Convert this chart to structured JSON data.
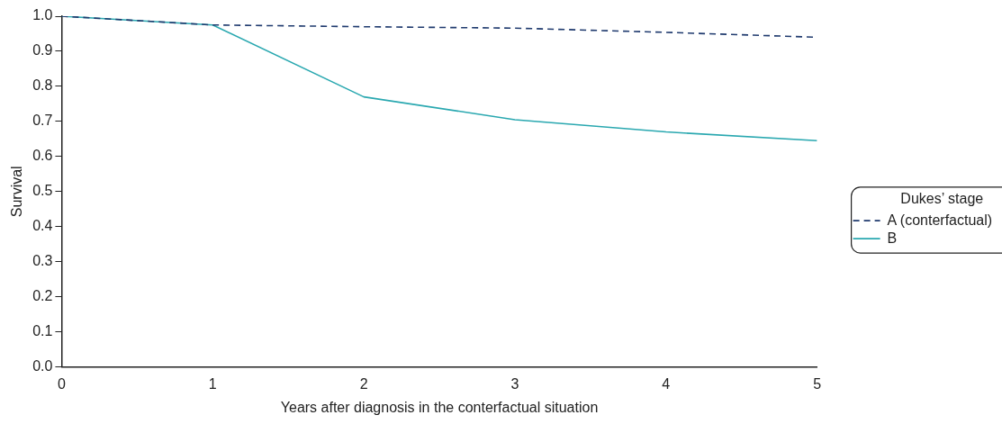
{
  "chart_data": {
    "type": "line",
    "xlabel": "Years after diagnosis in the conterfactual situation",
    "ylabel": "Survival",
    "legend_title": "Dukes’ stage",
    "x": [
      0,
      1,
      2,
      3,
      4,
      5
    ],
    "series": [
      {
        "name": "A (conterfactual)",
        "color": "#1f3a6e",
        "line_style": "dashed",
        "values": [
          1.0,
          0.975,
          0.97,
          0.966,
          0.954,
          0.94
        ]
      },
      {
        "name": "B",
        "color": "#2aa8b0",
        "line_style": "solid",
        "values": [
          1.0,
          0.975,
          0.77,
          0.705,
          0.67,
          0.645
        ]
      }
    ],
    "xlim": [
      0,
      5
    ],
    "xticks": [
      0,
      1,
      2,
      3,
      4,
      5
    ],
    "ylim": [
      0,
      1
    ],
    "yticks": [
      {
        "value": 0,
        "label": "0.0"
      },
      0.1,
      0.2,
      0.3,
      0.4,
      0.5,
      0.6,
      0.7,
      0.8,
      0.9,
      {
        "value": 1,
        "label": "1.0"
      }
    ],
    "grid": false,
    "legend": "right",
    "marker": "none"
  }
}
